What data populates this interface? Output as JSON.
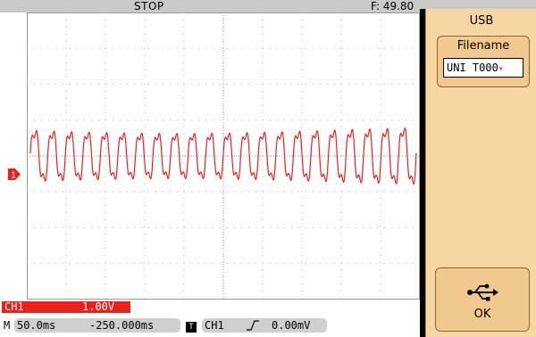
{
  "status_bar": {
    "run_state": "STOP",
    "frequency": "F: 49.80"
  },
  "side_menu": {
    "title": "USB",
    "filename_button": {
      "label": "Filename",
      "value": "UNI T000"
    },
    "ok_button": {
      "label": "OK",
      "icon": "usb-icon"
    }
  },
  "channel": {
    "marker": "1",
    "name": "CH1",
    "volts_per_div": "1.00V",
    "color": "#e8201e"
  },
  "timebase": {
    "prefix": "M",
    "time_per_div": "50.0ms",
    "position": "-250.000ms"
  },
  "trigger": {
    "badge": "T",
    "source": "CH1",
    "slope_icon": "rising-edge-icon",
    "level": "0.00mV"
  },
  "waveform": {
    "color": "#e8201e",
    "cycles": 22,
    "amplitude_div": 1.0,
    "offset_div": 0
  }
}
